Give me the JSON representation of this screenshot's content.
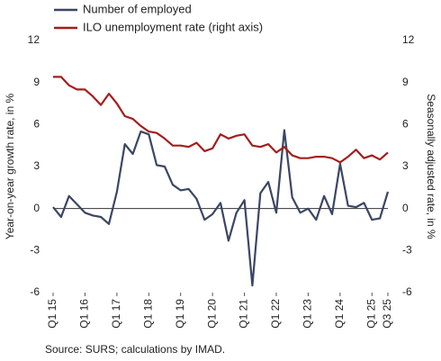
{
  "chart_data": {
    "type": "line",
    "categories": [
      "Q1 15",
      null,
      null,
      null,
      "Q1 16",
      null,
      null,
      null,
      "Q1 17",
      null,
      null,
      null,
      "Q1 18",
      null,
      null,
      null,
      "Q1 19",
      null,
      null,
      null,
      "Q1 20",
      null,
      null,
      null,
      "Q1 21",
      null,
      null,
      null,
      "Q1 22",
      null,
      null,
      null,
      "Q1 23",
      null,
      null,
      null,
      "Q1 24",
      null,
      null,
      null,
      "Q1 25",
      null,
      "Q3 25"
    ],
    "series": [
      {
        "name": "Number of employed",
        "color": "#3b4664",
        "values": [
          0.1,
          -0.6,
          0.9,
          0.3,
          -0.3,
          -0.5,
          -0.6,
          -1.1,
          1.2,
          4.6,
          3.9,
          5.5,
          5.3,
          3.1,
          3.0,
          1.7,
          1.3,
          1.4,
          0.7,
          -0.8,
          -0.4,
          0.4,
          -2.3,
          -0.3,
          0.6,
          -5.5,
          1.1,
          1.9,
          -0.3,
          5.6,
          0.8,
          -0.3,
          0.0,
          -0.8,
          0.9,
          -0.4,
          3.2,
          0.2,
          0.1,
          0.4,
          -0.8,
          -0.7,
          1.2
        ]
      },
      {
        "name": "ILO unemployment rate (right axis)",
        "color": "#a51d1d",
        "axis": "y2",
        "values": [
          9.4,
          9.4,
          8.8,
          8.5,
          8.5,
          8.0,
          7.4,
          8.2,
          7.5,
          6.6,
          6.4,
          5.9,
          5.5,
          5.4,
          5.0,
          4.5,
          4.5,
          4.4,
          4.7,
          4.1,
          4.3,
          5.3,
          5.0,
          5.2,
          5.3,
          4.5,
          4.4,
          4.6,
          4.0,
          4.4,
          3.8,
          3.6,
          3.6,
          3.7,
          3.7,
          3.6,
          3.3,
          3.7,
          4.2,
          3.6,
          3.8,
          3.5,
          4.0
        ]
      }
    ],
    "ylabel": "Year-on-year growth rate, in %",
    "y2label": "Seasonally adjusted rate, in %",
    "ylim": [
      -6,
      12
    ],
    "yticks": [
      -6,
      -3,
      0,
      3,
      6,
      9,
      12
    ],
    "y2lim": [
      -6,
      12
    ],
    "y2ticks": [
      -6,
      -3,
      0,
      3,
      6,
      9,
      12
    ],
    "source": "Source: SURS; calculations by IMAD."
  }
}
